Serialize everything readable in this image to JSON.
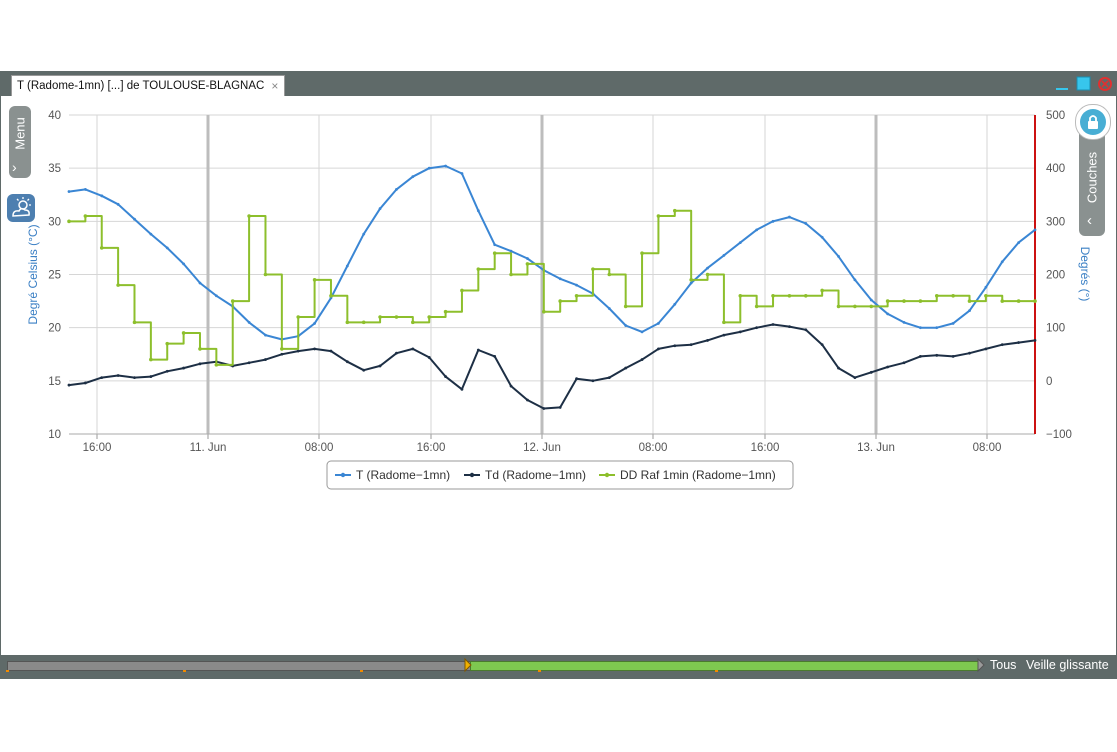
{
  "window": {
    "tab_title": "T (Radome-1mn) [...] de TOULOUSE-BLAGNAC",
    "tab_close": "×"
  },
  "side": {
    "menu_label": "Menu",
    "layers_label": "Couches"
  },
  "bottom": {
    "all_label": "Tous",
    "sliding_label": "Veille glissante"
  },
  "colors": {
    "t": "#3a86d4",
    "td": "#1d2f45",
    "dd": "#8dbf2c",
    "right_axis": "#cc1111"
  },
  "chart_data": {
    "type": "line",
    "x_ticks": [
      "16:00",
      "11. Jun",
      "08:00",
      "16:00",
      "12. Jun",
      "08:00",
      "16:00",
      "13. Jun",
      "08:00"
    ],
    "y_left": {
      "label": "Degré Celsius (°C)",
      "ticks": [
        "40",
        "35",
        "30",
        "25",
        "20",
        "15",
        "10"
      ],
      "range": [
        10,
        40
      ]
    },
    "y_right": {
      "label": "Degrés (°)",
      "ticks": [
        "500",
        "400",
        "300",
        "200",
        "100",
        "0",
        "−100"
      ],
      "range": [
        -100,
        500
      ]
    },
    "grid": true,
    "legend_position": "bottom",
    "series": [
      {
        "name": "T (Radome−1mn)",
        "axis": "left",
        "values": [
          32.8,
          33.0,
          32.4,
          31.6,
          30.2,
          28.8,
          27.5,
          26.0,
          24.2,
          23.0,
          22.0,
          20.5,
          19.3,
          18.9,
          19.2,
          20.4,
          22.8,
          25.8,
          28.8,
          31.2,
          33.0,
          34.2,
          35.0,
          35.2,
          34.5,
          31.0,
          27.8,
          27.2,
          26.5,
          25.4,
          24.6,
          24.0,
          23.2,
          21.8,
          20.2,
          19.6,
          20.4,
          22.2,
          24.2,
          25.6,
          26.8,
          28.0,
          29.2,
          30.0,
          30.4,
          29.8,
          28.5,
          26.7,
          24.5,
          22.6,
          21.3,
          20.5,
          20.0,
          20.0,
          20.4,
          21.6,
          23.8,
          26.2,
          28.0,
          29.2
        ]
      },
      {
        "name": "Td (Radome−1mn)",
        "axis": "left",
        "values": [
          14.6,
          14.8,
          15.3,
          15.5,
          15.3,
          15.4,
          15.9,
          16.2,
          16.6,
          16.8,
          16.4,
          16.7,
          17.0,
          17.5,
          17.8,
          18.0,
          17.8,
          16.8,
          16.0,
          16.4,
          17.6,
          18.0,
          17.2,
          15.4,
          14.2,
          17.9,
          17.3,
          14.5,
          13.2,
          12.4,
          12.5,
          15.2,
          15.0,
          15.3,
          16.2,
          17.0,
          18.0,
          18.3,
          18.4,
          18.8,
          19.3,
          19.6,
          20.0,
          20.3,
          20.1,
          19.8,
          18.4,
          16.2,
          15.3,
          15.8,
          16.3,
          16.7,
          17.3,
          17.4,
          17.3,
          17.6,
          18.0,
          18.4,
          18.6,
          18.8
        ]
      },
      {
        "name": "DD Raf 1min (Radome−1mn)",
        "axis": "right",
        "values": [
          300,
          310,
          250,
          180,
          110,
          40,
          70,
          90,
          60,
          30,
          150,
          310,
          200,
          60,
          120,
          190,
          160,
          110,
          110,
          120,
          120,
          110,
          120,
          130,
          170,
          210,
          240,
          200,
          220,
          130,
          150,
          160,
          210,
          200,
          140,
          240,
          310,
          320,
          190,
          200,
          110,
          160,
          140,
          160,
          160,
          160,
          170,
          140,
          140,
          140,
          150,
          150,
          150,
          160,
          160,
          150,
          160,
          150,
          150,
          150
        ]
      }
    ]
  }
}
